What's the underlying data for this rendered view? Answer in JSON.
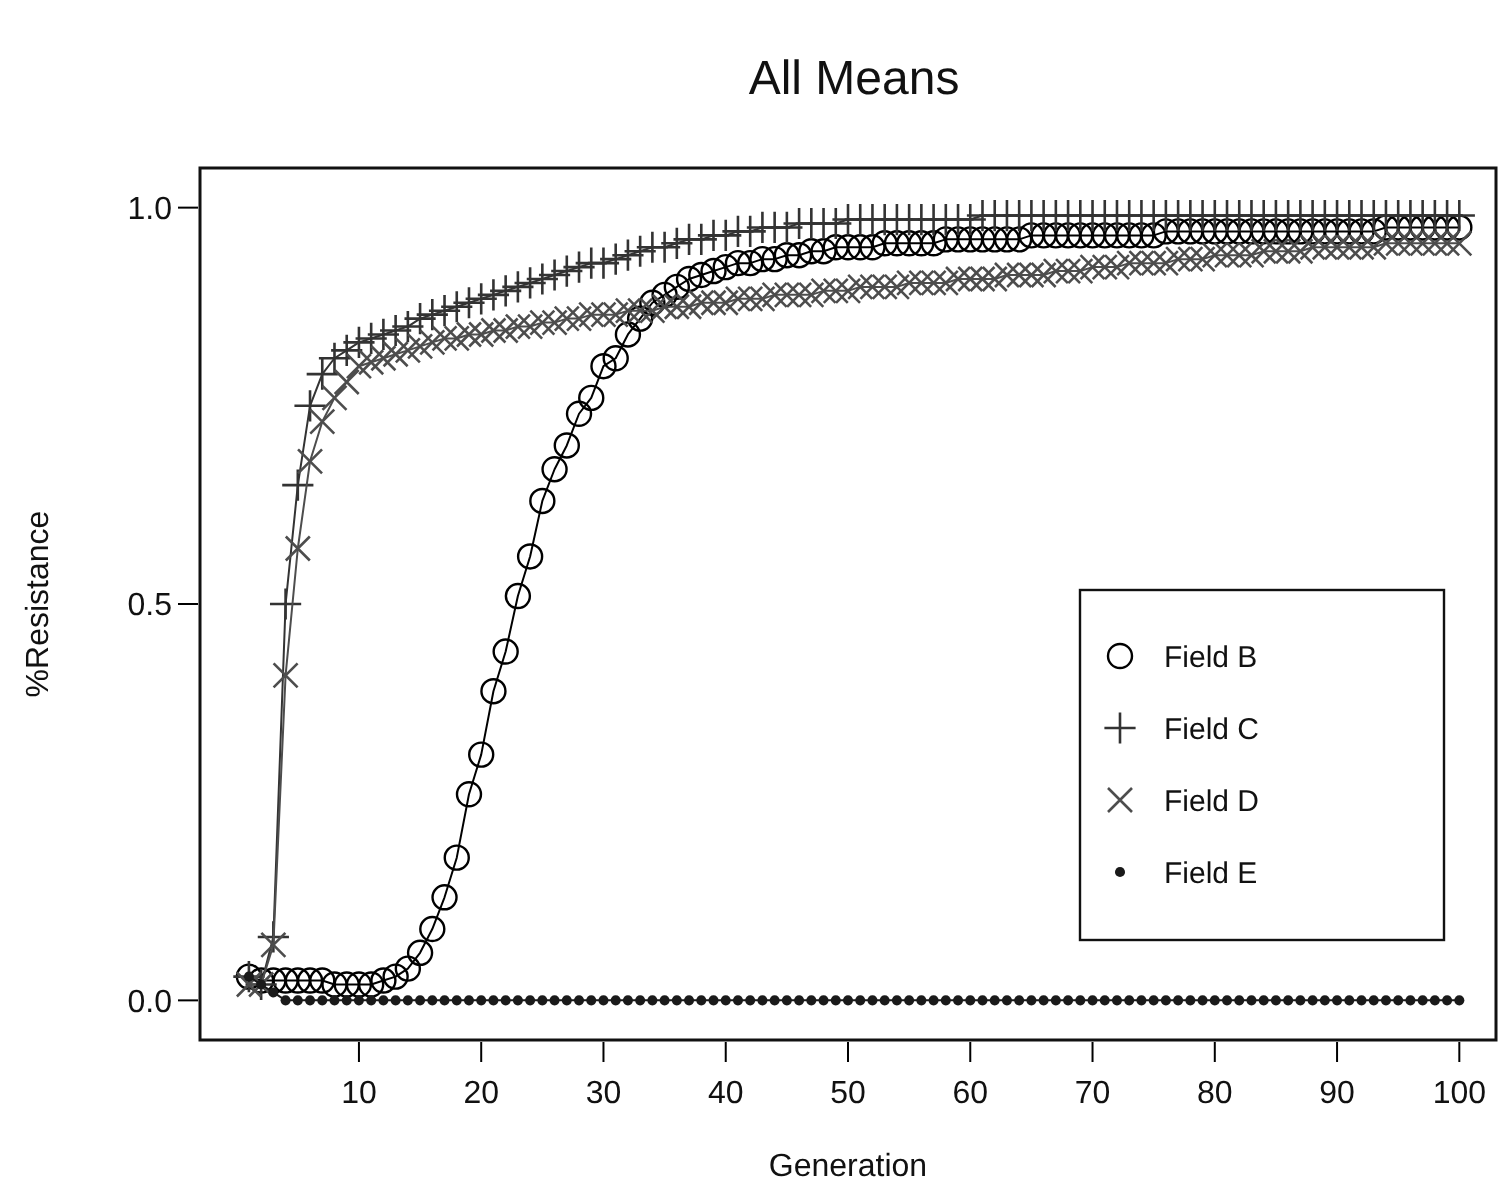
{
  "chart_data": {
    "type": "line",
    "title": "All Means",
    "xlabel": "Generation",
    "ylabel": "%Resistance",
    "x": [
      1,
      2,
      3,
      4,
      5,
      6,
      7,
      8,
      9,
      10,
      11,
      12,
      13,
      14,
      15,
      16,
      17,
      18,
      19,
      20,
      21,
      22,
      23,
      24,
      25,
      26,
      27,
      28,
      29,
      30,
      31,
      32,
      33,
      34,
      35,
      36,
      37,
      38,
      39,
      40,
      41,
      42,
      43,
      44,
      45,
      46,
      47,
      48,
      49,
      50,
      51,
      52,
      53,
      54,
      55,
      56,
      57,
      58,
      59,
      60,
      61,
      62,
      63,
      64,
      65,
      66,
      67,
      68,
      69,
      70,
      71,
      72,
      73,
      74,
      75,
      76,
      77,
      78,
      79,
      80,
      81,
      82,
      83,
      84,
      85,
      86,
      87,
      88,
      89,
      90,
      91,
      92,
      93,
      94,
      95,
      96,
      97,
      98,
      99,
      100
    ],
    "xlim": [
      -3,
      103
    ],
    "xticks": [
      10,
      20,
      30,
      40,
      50,
      60,
      70,
      80,
      90,
      100
    ],
    "ylim": [
      -0.05,
      1.05
    ],
    "yticks": [
      {
        "value": 0,
        "label": "0.0"
      },
      {
        "value": 0.5,
        "label": "0.5"
      },
      {
        "value": 1,
        "label": "1.0"
      }
    ],
    "grid": false,
    "legend": "bottom right",
    "line_style": "solid",
    "series": [
      {
        "name": "Field B",
        "color": "#000000",
        "marker": "circle",
        "values": [
          0.03,
          0.025,
          0.025,
          0.025,
          0.025,
          0.025,
          0.025,
          0.02,
          0.02,
          0.02,
          0.02,
          0.025,
          0.03,
          0.04,
          0.06,
          0.09,
          0.13,
          0.18,
          0.26,
          0.31,
          0.39,
          0.44,
          0.51,
          0.56,
          0.63,
          0.67,
          0.7,
          0.74,
          0.76,
          0.8,
          0.81,
          0.84,
          0.86,
          0.88,
          0.89,
          0.9,
          0.91,
          0.915,
          0.92,
          0.925,
          0.93,
          0.93,
          0.935,
          0.935,
          0.94,
          0.94,
          0.945,
          0.945,
          0.95,
          0.95,
          0.95,
          0.95,
          0.955,
          0.955,
          0.955,
          0.955,
          0.955,
          0.96,
          0.96,
          0.96,
          0.96,
          0.96,
          0.96,
          0.96,
          0.965,
          0.965,
          0.965,
          0.965,
          0.965,
          0.965,
          0.965,
          0.965,
          0.965,
          0.965,
          0.965,
          0.97,
          0.97,
          0.97,
          0.97,
          0.97,
          0.97,
          0.97,
          0.97,
          0.97,
          0.97,
          0.97,
          0.97,
          0.97,
          0.97,
          0.97,
          0.97,
          0.97,
          0.97,
          0.975,
          0.975,
          0.975,
          0.975,
          0.975,
          0.975,
          0.975
        ]
      },
      {
        "name": "Field C",
        "color": "#333333",
        "marker": "cross",
        "values": [
          0.03,
          0.02,
          0.08,
          0.5,
          0.65,
          0.75,
          0.79,
          0.81,
          0.82,
          0.83,
          0.835,
          0.84,
          0.845,
          0.85,
          0.86,
          0.865,
          0.87,
          0.875,
          0.88,
          0.885,
          0.89,
          0.895,
          0.9,
          0.905,
          0.91,
          0.915,
          0.92,
          0.925,
          0.93,
          0.93,
          0.935,
          0.94,
          0.945,
          0.95,
          0.95,
          0.955,
          0.96,
          0.96,
          0.965,
          0.965,
          0.97,
          0.97,
          0.975,
          0.975,
          0.975,
          0.98,
          0.98,
          0.98,
          0.98,
          0.985,
          0.985,
          0.985,
          0.985,
          0.985,
          0.985,
          0.985,
          0.985,
          0.985,
          0.985,
          0.985,
          0.99,
          0.99,
          0.99,
          0.99,
          0.99,
          0.99,
          0.99,
          0.99,
          0.99,
          0.99,
          0.99,
          0.99,
          0.99,
          0.99,
          0.99,
          0.99,
          0.99,
          0.99,
          0.99,
          0.99,
          0.99,
          0.99,
          0.99,
          0.99,
          0.99,
          0.99,
          0.99,
          0.99,
          0.99,
          0.99,
          0.99,
          0.99,
          0.99,
          0.99,
          0.99,
          0.99,
          0.99,
          0.99,
          0.99,
          0.99
        ]
      },
      {
        "name": "Field D",
        "color": "#4d4d4d",
        "marker": "x",
        "values": [
          0.02,
          0.02,
          0.07,
          0.41,
          0.57,
          0.68,
          0.73,
          0.76,
          0.78,
          0.8,
          0.805,
          0.81,
          0.815,
          0.82,
          0.825,
          0.83,
          0.835,
          0.835,
          0.84,
          0.84,
          0.845,
          0.845,
          0.85,
          0.85,
          0.855,
          0.855,
          0.86,
          0.86,
          0.865,
          0.865,
          0.865,
          0.87,
          0.87,
          0.87,
          0.875,
          0.875,
          0.875,
          0.88,
          0.88,
          0.88,
          0.885,
          0.885,
          0.885,
          0.89,
          0.89,
          0.89,
          0.89,
          0.895,
          0.895,
          0.895,
          0.9,
          0.9,
          0.9,
          0.9,
          0.905,
          0.905,
          0.905,
          0.905,
          0.91,
          0.91,
          0.91,
          0.91,
          0.915,
          0.915,
          0.915,
          0.915,
          0.92,
          0.92,
          0.92,
          0.925,
          0.925,
          0.925,
          0.93,
          0.93,
          0.93,
          0.93,
          0.935,
          0.935,
          0.935,
          0.94,
          0.94,
          0.94,
          0.94,
          0.945,
          0.945,
          0.945,
          0.945,
          0.95,
          0.95,
          0.95,
          0.95,
          0.95,
          0.95,
          0.955,
          0.955,
          0.955,
          0.955,
          0.955,
          0.955,
          0.955
        ]
      },
      {
        "name": "Field E",
        "color": "#1a1a1a",
        "marker": "dot",
        "values": [
          0.03,
          0.02,
          0.01,
          0,
          0,
          0,
          0,
          0,
          0,
          0,
          0,
          0,
          0,
          0,
          0,
          0,
          0,
          0,
          0,
          0,
          0,
          0,
          0,
          0,
          0,
          0,
          0,
          0,
          0,
          0,
          0,
          0,
          0,
          0,
          0,
          0,
          0,
          0,
          0,
          0,
          0,
          0,
          0,
          0,
          0,
          0,
          0,
          0,
          0,
          0,
          0,
          0,
          0,
          0,
          0,
          0,
          0,
          0,
          0,
          0,
          0,
          0,
          0,
          0,
          0,
          0,
          0,
          0,
          0,
          0,
          0,
          0,
          0,
          0,
          0,
          0,
          0,
          0,
          0,
          0,
          0,
          0,
          0,
          0,
          0,
          0,
          0,
          0,
          0,
          0,
          0,
          0,
          0,
          0,
          0,
          0,
          0,
          0,
          0,
          0
        ]
      }
    ]
  }
}
